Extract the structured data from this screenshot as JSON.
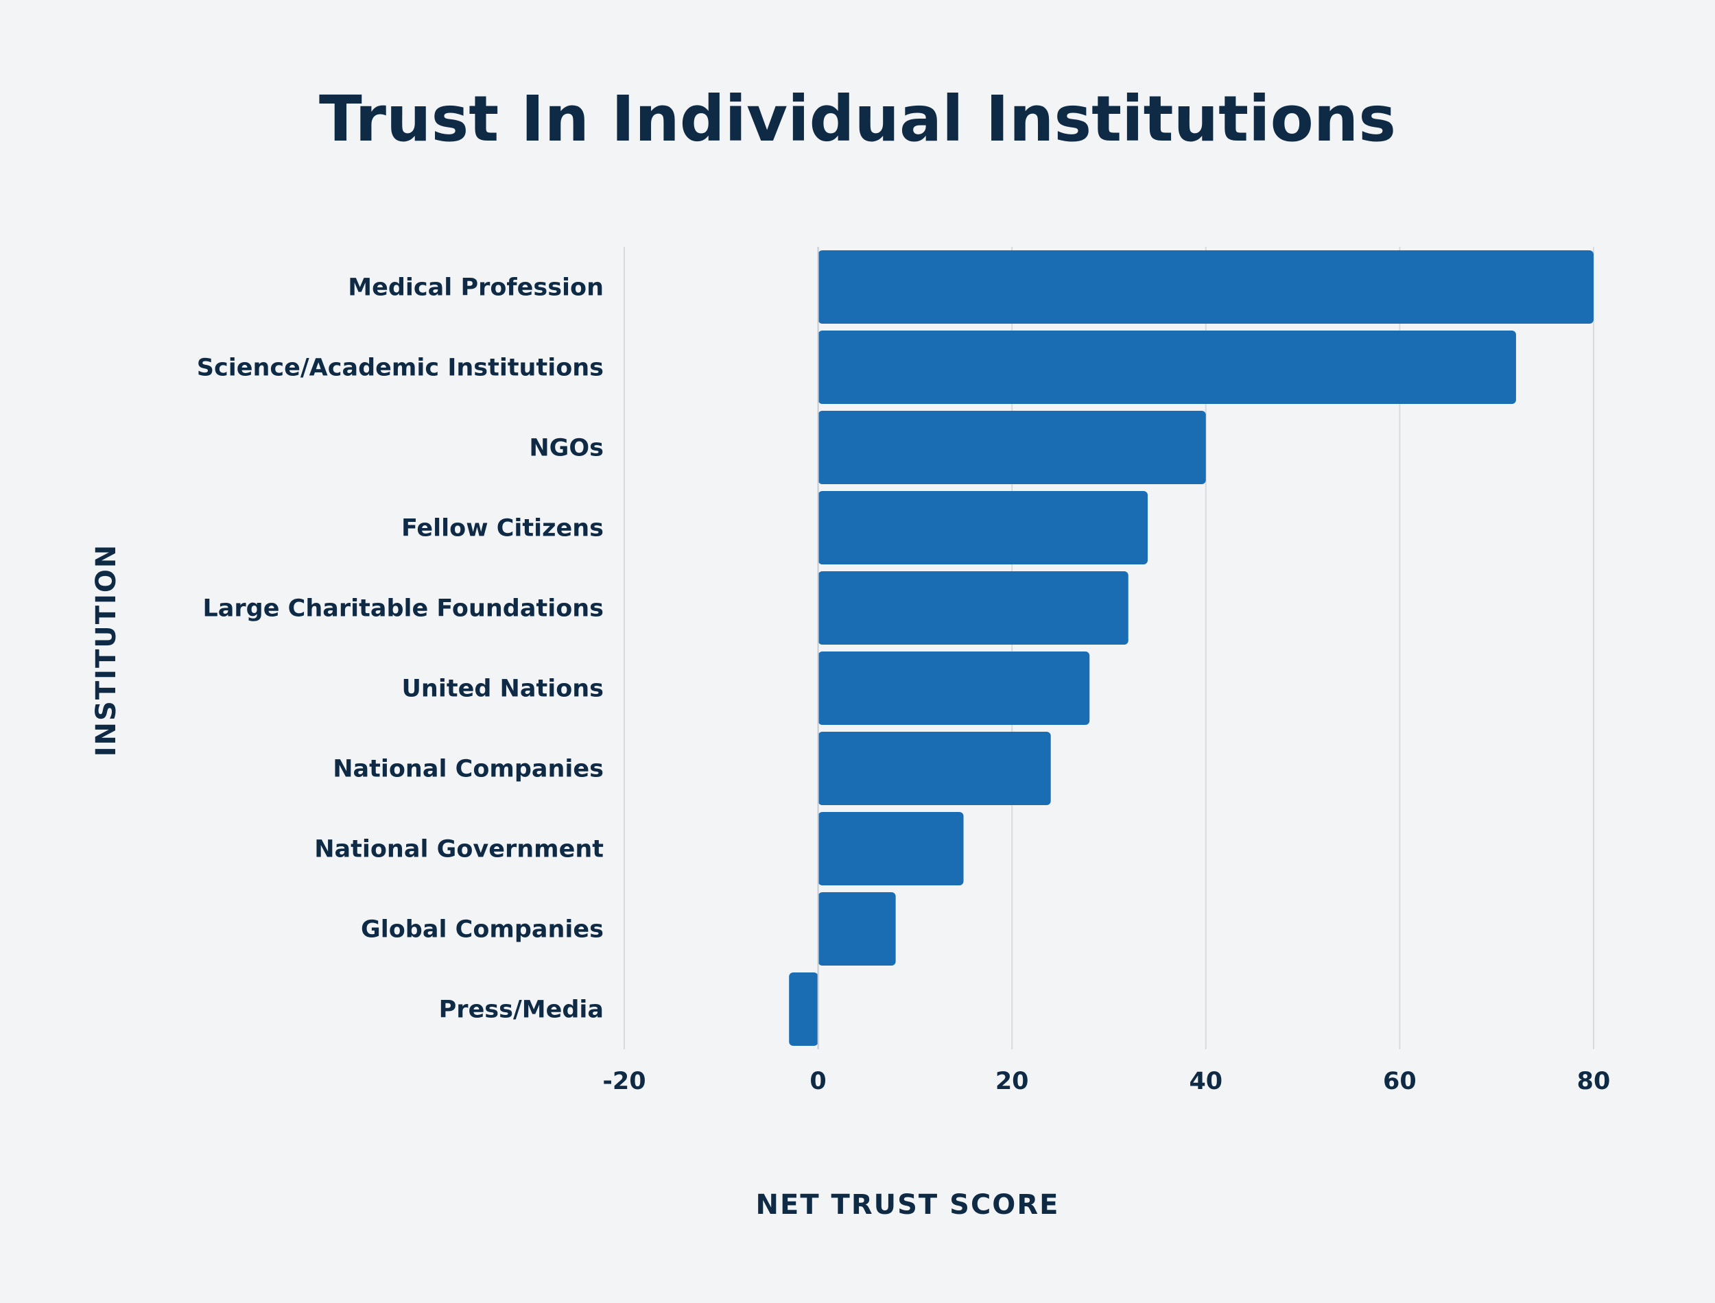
{
  "chart_data": {
    "type": "bar",
    "orientation": "horizontal",
    "title": "Trust In Individual Institutions",
    "xlabel": "NET TRUST SCORE",
    "ylabel": "INSTITUTION",
    "categories": [
      "Medical Profession",
      "Science/Academic Institutions",
      "NGOs",
      "Fellow Citizens",
      "Large Charitable Foundations",
      "United Nations",
      "National Companies",
      "National Government",
      "Global Companies",
      "Press/Media"
    ],
    "values": [
      80,
      72,
      40,
      34,
      32,
      28,
      24,
      15,
      8,
      -3
    ],
    "xlim": [
      -20,
      80
    ],
    "xticks": [
      "-20",
      "0",
      "20",
      "40",
      "60",
      "80"
    ],
    "grid": true,
    "colors": {
      "bar": "#1b6db3",
      "text": "#0f2a45",
      "grid": "#d8dadd",
      "background": "#f2f4f6"
    }
  }
}
